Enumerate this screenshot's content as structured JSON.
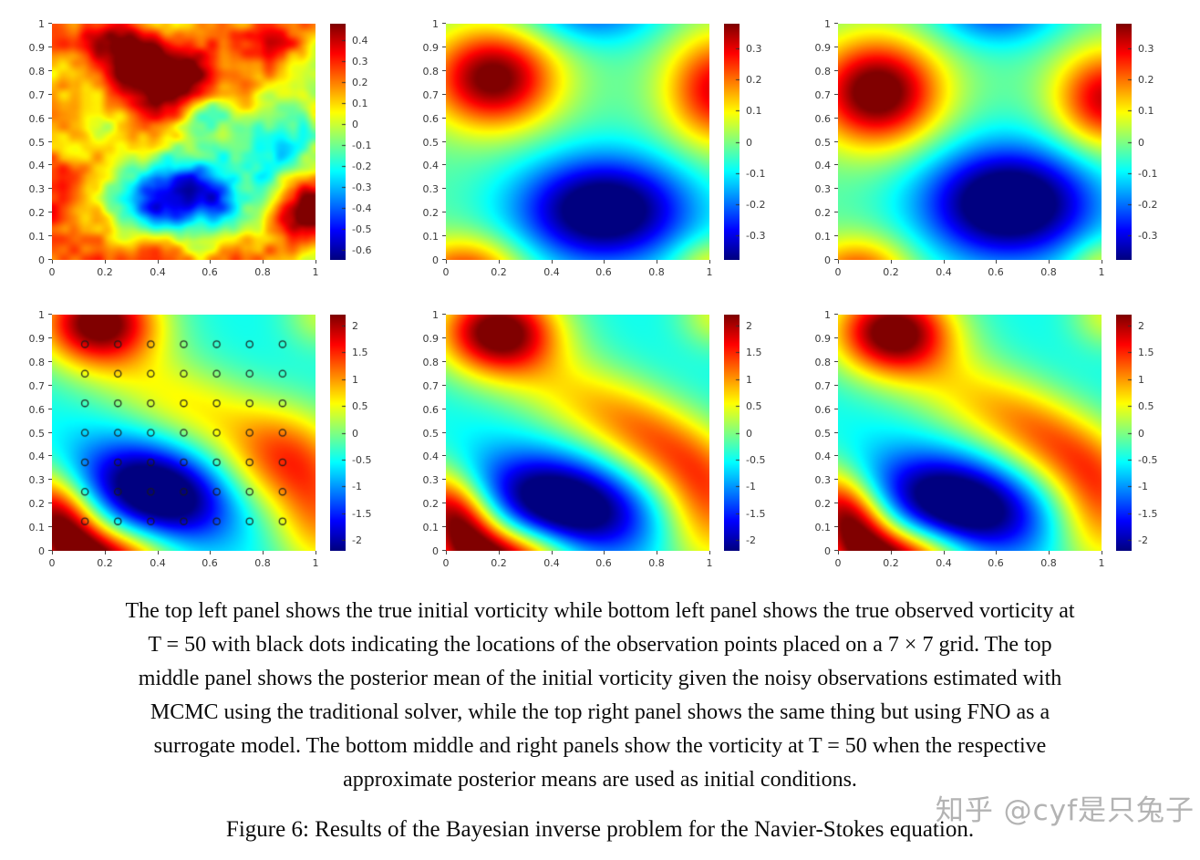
{
  "figure": {
    "caption_lines": [
      "The top left panel shows the true initial vorticity while bottom left panel shows the true observed vorticity at",
      "T = 50 with black dots indicating the locations of the observation points placed on a 7 × 7 grid. The top",
      "middle panel shows the posterior mean of the initial vorticity given the noisy observations estimated with",
      "MCMC using the traditional solver, while the top right panel shows the same thing but using FNO as a",
      "surrogate model. The bottom middle and right panels show the vorticity at T = 50 when the respective",
      "approximate posterior means are used as initial conditions."
    ],
    "figure_caption": "Figure 6: Results of the Bayesian inverse problem for the Navier-Stokes equation.",
    "watermark": "知乎 @cyf是只兔子"
  },
  "chart_data": [
    {
      "id": "top-left",
      "type": "heatmap",
      "description": "true initial vorticity",
      "row": 0,
      "col": 0,
      "colormap": "jet",
      "x_ticks": [
        0,
        0.2,
        0.4,
        0.6,
        0.8,
        1
      ],
      "y_ticks": [
        0,
        0.1,
        0.2,
        0.3,
        0.4,
        0.5,
        0.6,
        0.7,
        0.8,
        0.9,
        1
      ],
      "xlim": [
        0,
        1
      ],
      "ylim": [
        0,
        1
      ],
      "vmin": -0.65,
      "vmax": 0.48,
      "colorbar_ticks": [
        0.4,
        0.3,
        0.2,
        0.1,
        0,
        -0.1,
        -0.2,
        -0.3,
        -0.4,
        -0.5,
        -0.6
      ],
      "field": {
        "base": 0.06,
        "blobs": [
          [
            0.45,
            0.76,
            0.5,
            0.13,
            0.1,
            0
          ],
          [
            0.27,
            0.9,
            0.28,
            0.16,
            0.1,
            0
          ],
          [
            0.88,
            0.97,
            0.22,
            0.12,
            0.08,
            0
          ],
          [
            -0.02,
            0.25,
            0.38,
            0.09,
            0.12,
            0
          ],
          [
            0.97,
            0.2,
            0.35,
            0.13,
            0.13,
            0
          ],
          [
            0.35,
            -0.03,
            0.22,
            0.22,
            0.09,
            0
          ],
          [
            0.5,
            0.27,
            -0.78,
            0.17,
            0.11,
            0
          ],
          [
            0.85,
            0.5,
            -0.35,
            0.11,
            0.13,
            0
          ],
          [
            0.62,
            0.62,
            -0.12,
            0.1,
            0.08,
            0
          ]
        ],
        "noise": {
          "seed": 7,
          "scales": [
            5,
            11,
            23
          ],
          "amps": [
            0.13,
            0.09,
            0.06
          ]
        }
      },
      "markers": null
    },
    {
      "id": "top-middle",
      "type": "heatmap",
      "description": "posterior mean of initial vorticity (MCMC, traditional solver)",
      "row": 0,
      "col": 1,
      "colormap": "jet",
      "x_ticks": [
        0,
        0.2,
        0.4,
        0.6,
        0.8,
        1
      ],
      "y_ticks": [
        0,
        0.1,
        0.2,
        0.3,
        0.4,
        0.5,
        0.6,
        0.7,
        0.8,
        0.9,
        1
      ],
      "xlim": [
        0,
        1
      ],
      "ylim": [
        0,
        1
      ],
      "vmin": -0.38,
      "vmax": 0.38,
      "colorbar_ticks": [
        0.3,
        0.2,
        0.1,
        0,
        -0.1,
        -0.2,
        -0.3
      ],
      "field": {
        "base": -0.03,
        "blobs": [
          [
            0.18,
            0.77,
            0.44,
            0.17,
            0.15,
            0
          ],
          [
            1.03,
            0.72,
            0.34,
            0.14,
            0.17,
            0
          ],
          [
            0.08,
            -0.06,
            0.3,
            0.15,
            0.11,
            0
          ],
          [
            1.0,
            -0.02,
            0.14,
            0.1,
            0.08,
            0
          ],
          [
            0.6,
            0.21,
            -0.44,
            0.23,
            0.16,
            0
          ],
          [
            0.55,
            1.07,
            -0.2,
            0.19,
            0.11,
            0
          ]
        ],
        "noise": null
      },
      "markers": null
    },
    {
      "id": "top-right",
      "type": "heatmap",
      "description": "posterior mean of initial vorticity (MCMC, FNO surrogate)",
      "row": 0,
      "col": 2,
      "colormap": "jet",
      "x_ticks": [
        0,
        0.2,
        0.4,
        0.6,
        0.8,
        1
      ],
      "y_ticks": [
        0,
        0.1,
        0.2,
        0.3,
        0.4,
        0.5,
        0.6,
        0.7,
        0.8,
        0.9,
        1
      ],
      "xlim": [
        0,
        1
      ],
      "ylim": [
        0,
        1
      ],
      "vmin": -0.38,
      "vmax": 0.38,
      "colorbar_ticks": [
        0.3,
        0.2,
        0.1,
        0,
        -0.1,
        -0.2,
        -0.3
      ],
      "field": {
        "base": -0.03,
        "blobs": [
          [
            0.15,
            0.71,
            0.47,
            0.17,
            0.16,
            0
          ],
          [
            1.02,
            0.68,
            0.36,
            0.14,
            0.15,
            0
          ],
          [
            0.08,
            -0.06,
            0.28,
            0.14,
            0.11,
            0
          ],
          [
            1.0,
            -0.02,
            0.13,
            0.09,
            0.08,
            0
          ],
          [
            0.65,
            0.24,
            -0.47,
            0.23,
            0.17,
            0
          ],
          [
            0.6,
            1.07,
            -0.22,
            0.17,
            0.11,
            0
          ]
        ],
        "noise": null
      },
      "markers": null
    },
    {
      "id": "bottom-left",
      "type": "heatmap",
      "description": "true observed vorticity at T = 50 with 7 × 7 observation grid",
      "row": 1,
      "col": 0,
      "colormap": "jet",
      "x_ticks": [
        0,
        0.2,
        0.4,
        0.6,
        0.8,
        1
      ],
      "y_ticks": [
        0,
        0.1,
        0.2,
        0.3,
        0.4,
        0.5,
        0.6,
        0.7,
        0.8,
        0.9,
        1
      ],
      "xlim": [
        0,
        1
      ],
      "ylim": [
        0,
        1
      ],
      "vmin": -2.2,
      "vmax": 2.2,
      "colorbar_ticks": [
        2,
        1.5,
        1,
        0.5,
        0,
        -0.5,
        -1,
        -1.5,
        -2
      ],
      "field": {
        "base": -0.5,
        "blobs": [
          [
            0.18,
            0.97,
            2.9,
            0.16,
            0.13,
            0
          ],
          [
            0.03,
            0.12,
            2.7,
            0.1,
            0.16,
            0.5
          ],
          [
            0.22,
            -0.05,
            2.3,
            0.16,
            0.1,
            0
          ],
          [
            0.4,
            0.25,
            -2.4,
            0.2,
            0.13,
            -0.35
          ],
          [
            0.52,
            0.62,
            1.05,
            0.28,
            0.13,
            -0.45
          ],
          [
            0.88,
            0.38,
            1.5,
            0.16,
            0.16,
            0
          ],
          [
            1.02,
            0.12,
            1.3,
            0.12,
            0.18,
            0
          ],
          [
            1.03,
            1.0,
            0.8,
            0.1,
            0.1,
            0
          ]
        ],
        "noise": null
      },
      "markers": {
        "grid": "7x7",
        "x": [
          0.125,
          0.25,
          0.375,
          0.5,
          0.625,
          0.75,
          0.875
        ],
        "y": [
          0.125,
          0.25,
          0.375,
          0.5,
          0.625,
          0.75,
          0.875
        ]
      }
    },
    {
      "id": "bottom-middle",
      "type": "heatmap",
      "description": "vorticity at T = 50 from MCMC posterior mean initial condition",
      "row": 1,
      "col": 1,
      "colormap": "jet",
      "x_ticks": [
        0,
        0.2,
        0.4,
        0.6,
        0.8,
        1
      ],
      "y_ticks": [
        0,
        0.1,
        0.2,
        0.3,
        0.4,
        0.5,
        0.6,
        0.7,
        0.8,
        0.9,
        1
      ],
      "xlim": [
        0,
        1
      ],
      "ylim": [
        0,
        1
      ],
      "vmin": -2.2,
      "vmax": 2.2,
      "colorbar_ticks": [
        2,
        1.5,
        1,
        0.5,
        0,
        -0.5,
        -1,
        -1.5,
        -2
      ],
      "field": {
        "base": -0.5,
        "blobs": [
          [
            0.2,
            0.93,
            2.9,
            0.16,
            0.13,
            0
          ],
          [
            0.04,
            0.13,
            2.7,
            0.1,
            0.16,
            0.5
          ],
          [
            0.24,
            -0.05,
            2.4,
            0.16,
            0.1,
            0
          ],
          [
            0.45,
            0.2,
            -2.4,
            0.22,
            0.13,
            -0.3
          ],
          [
            0.55,
            0.62,
            1.1,
            0.26,
            0.13,
            -0.5
          ],
          [
            0.85,
            0.42,
            1.2,
            0.2,
            0.12,
            -0.7
          ],
          [
            1.0,
            0.15,
            1.4,
            0.13,
            0.2,
            0
          ],
          [
            1.03,
            1.0,
            0.9,
            0.1,
            0.1,
            0
          ]
        ],
        "noise": null
      },
      "markers": null
    },
    {
      "id": "bottom-right",
      "type": "heatmap",
      "description": "vorticity at T = 50 from FNO posterior mean initial condition",
      "row": 1,
      "col": 2,
      "colormap": "jet",
      "x_ticks": [
        0,
        0.2,
        0.4,
        0.6,
        0.8,
        1
      ],
      "y_ticks": [
        0,
        0.1,
        0.2,
        0.3,
        0.4,
        0.5,
        0.6,
        0.7,
        0.8,
        0.9,
        1
      ],
      "xlim": [
        0,
        1
      ],
      "ylim": [
        0,
        1
      ],
      "vmin": -2.2,
      "vmax": 2.2,
      "colorbar_ticks": [
        2,
        1.5,
        1,
        0.5,
        0,
        -0.5,
        -1,
        -1.5,
        -2
      ],
      "field": {
        "base": -0.5,
        "blobs": [
          [
            0.21,
            0.93,
            2.9,
            0.16,
            0.13,
            0
          ],
          [
            0.04,
            0.13,
            2.7,
            0.1,
            0.16,
            0.5
          ],
          [
            0.24,
            -0.05,
            2.4,
            0.16,
            0.1,
            0
          ],
          [
            0.46,
            0.2,
            -2.4,
            0.22,
            0.13,
            -0.3
          ],
          [
            0.56,
            0.62,
            1.1,
            0.26,
            0.13,
            -0.5
          ],
          [
            0.86,
            0.42,
            1.2,
            0.2,
            0.12,
            -0.7
          ],
          [
            1.0,
            0.15,
            1.4,
            0.13,
            0.2,
            0
          ],
          [
            1.03,
            1.0,
            0.9,
            0.1,
            0.1,
            0
          ]
        ],
        "noise": null
      },
      "markers": null
    }
  ],
  "layout_hints": {
    "grid": "off",
    "legend": "none",
    "accent_colors": {
      "jet_max": "#800000",
      "jet_min": "#00008f",
      "tick_text": "#3a3a3a"
    }
  }
}
